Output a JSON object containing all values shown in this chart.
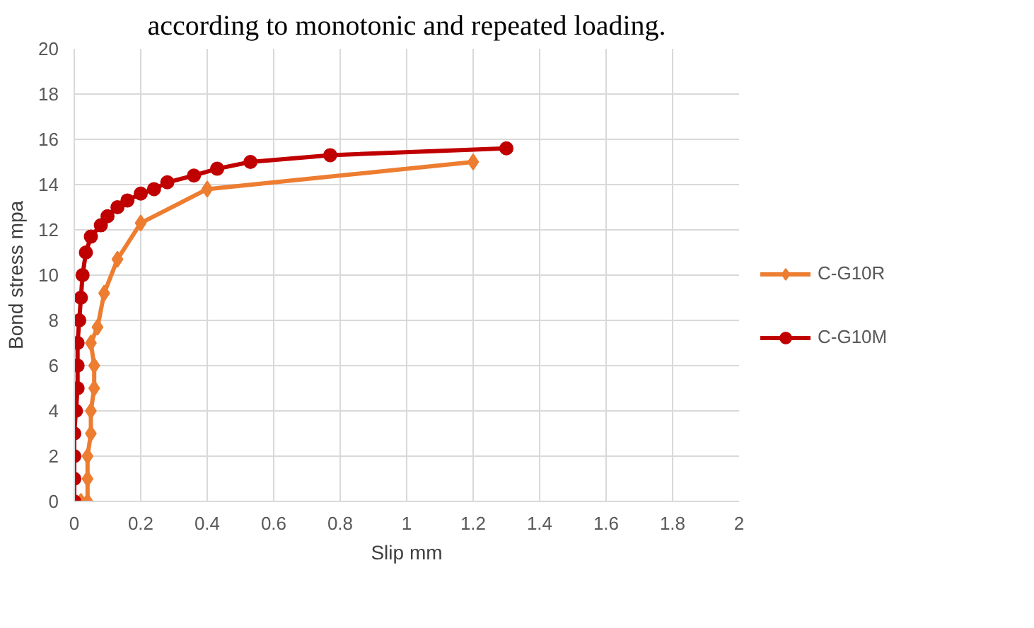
{
  "chart_data": {
    "type": "line",
    "xlabel": "Slip mm",
    "ylabel": "Bond stress mpa",
    "annotations": [
      "according to monotonic and repeated loading."
    ],
    "xlim": [
      0,
      2
    ],
    "xticks": [
      {
        "value": 0,
        "label": "0"
      },
      0.2,
      0.4,
      0.6,
      0.8,
      1,
      1.2,
      1.4,
      1.6,
      1.8,
      2
    ],
    "ylim": [
      0,
      20
    ],
    "yticks": [
      0,
      2,
      4,
      6,
      8,
      10,
      12,
      14,
      16,
      18,
      20
    ],
    "grid": true,
    "legend": "right",
    "series": [
      {
        "name": "C-G10R",
        "color": "#ed7d31",
        "marker": "diamond",
        "x": [
          0.02,
          0.04,
          0.04,
          0.04,
          0.05,
          0.05,
          0.06,
          0.06,
          0.05,
          0.07,
          0.09,
          0.13,
          0.2,
          0.4,
          1.2
        ],
        "values": [
          0,
          0,
          1,
          2,
          3,
          4,
          5,
          6,
          7,
          7.7,
          9.2,
          10.7,
          12.3,
          13.8,
          15.0
        ]
      },
      {
        "name": "C-G10M",
        "color": "#c00000",
        "marker": "circle",
        "x": [
          0,
          0,
          0,
          0,
          0.005,
          0.01,
          0.01,
          0.01,
          0.015,
          0.02,
          0.025,
          0.035,
          0.05,
          0.08,
          0.1,
          0.13,
          0.16,
          0.2,
          0.24,
          0.28,
          0.36,
          0.43,
          0.53,
          0.77,
          1.3
        ],
        "values": [
          0,
          1,
          2,
          3,
          4,
          5,
          6,
          7,
          8,
          9,
          10,
          11,
          11.7,
          12.2,
          12.6,
          13,
          13.3,
          13.6,
          13.8,
          14.1,
          14.4,
          14.7,
          15.0,
          15.3,
          15.6
        ]
      }
    ]
  }
}
